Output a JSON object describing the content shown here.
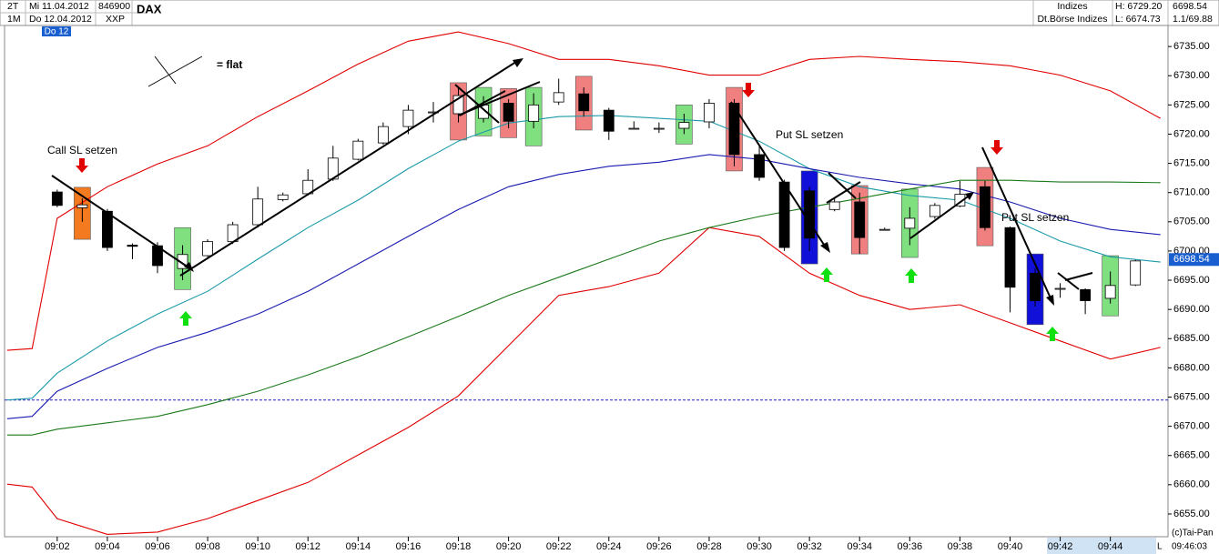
{
  "header": {
    "period1": "2T",
    "date1": "Mi 11.04.2012",
    "code": "846900",
    "symbol": "DAX",
    "period2": "1M",
    "date2": "Do 12.04.2012",
    "exchange_code": "XXP",
    "day_badge": "Do 12",
    "category": "Indizes",
    "exchange": "Dt.Börse Indizes",
    "high": "H: 6729.20",
    "low": "L: 6674.73",
    "last": "6698.54",
    "volume": "1.1/69.88"
  },
  "chart_data": {
    "type": "candlestick",
    "x": [
      2,
      3,
      4,
      5,
      6,
      7,
      8,
      9,
      10,
      11,
      12,
      13,
      14,
      15,
      16,
      17,
      18,
      19,
      20,
      21,
      22,
      23,
      24,
      25,
      26,
      27,
      28,
      29,
      30,
      31,
      32,
      33,
      34,
      35,
      36,
      37,
      38,
      39,
      40,
      41,
      42,
      43,
      44,
      45
    ],
    "open": [
      6710.1,
      6707.4,
      6706.8,
      6701.0,
      6700.9,
      6697.0,
      6699.2,
      6701.6,
      6704.5,
      6708.8,
      6709.8,
      6712.3,
      6715.7,
      6718.5,
      6721.3,
      6723.8,
      6723.5,
      6722.7,
      6725.3,
      6722.2,
      6725.5,
      6726.9,
      6724.1,
      6721.0,
      6721.0,
      6721.0,
      6722.1,
      6725.3,
      6716.5,
      6711.8,
      6710.3,
      6707.1,
      6708.4,
      6703.7,
      6703.9,
      6705.9,
      6707.7,
      6711.0,
      6704.0,
      6696.2,
      6693.6,
      6693.4,
      6691.9,
      6694.2
    ],
    "high": [
      6710.5,
      6709.0,
      6707.2,
      6701.3,
      6701.5,
      6701.0,
      6702.0,
      6705.0,
      6711.0,
      6710.0,
      6714.0,
      6718.0,
      6719.2,
      6722.0,
      6725.0,
      6725.5,
      6728.0,
      6726.5,
      6726.0,
      6727.0,
      6729.5,
      6728.0,
      6724.5,
      6722.2,
      6722.0,
      6723.5,
      6726.0,
      6726.0,
      6718.0,
      6712.2,
      6711.0,
      6709.0,
      6710.0,
      6704.0,
      6707.5,
      6708.2,
      6712.0,
      6712.0,
      6704.2,
      6697.0,
      6694.5,
      6693.6,
      6696.5,
      6698.5
    ],
    "low": [
      6707.5,
      6705.0,
      6700.0,
      6698.6,
      6696.2,
      6695.0,
      6699.0,
      6701.2,
      6704.0,
      6708.5,
      6709.5,
      6712.0,
      6715.5,
      6718.2,
      6720.0,
      6722.0,
      6722.0,
      6722.0,
      6721.0,
      6721.0,
      6725.0,
      6723.0,
      6719.0,
      6721.0,
      6720.2,
      6720.0,
      6721.0,
      6714.5,
      6712.0,
      6700.0,
      6700.0,
      6706.8,
      6699.5,
      6703.5,
      6701.0,
      6705.5,
      6707.5,
      6703.5,
      6689.5,
      6690.5,
      6692.0,
      6689.2,
      6691.0,
      6694.0
    ],
    "close": [
      6707.8,
      6707.9,
      6700.6,
      6700.8,
      6697.5,
      6699.4,
      6701.6,
      6704.5,
      6708.9,
      6709.6,
      6712.1,
      6715.9,
      6718.8,
      6721.3,
      6724.1,
      6723.8,
      6726.6,
      6725.0,
      6722.2,
      6725.0,
      6727.1,
      6724.0,
      6720.5,
      6721.0,
      6721.0,
      6722.0,
      6725.3,
      6716.5,
      6712.6,
      6700.6,
      6702.2,
      6708.4,
      6702.3,
      6703.7,
      6705.6,
      6707.8,
      6709.7,
      6704.0,
      6693.8,
      6691.5,
      6693.6,
      6691.5,
      6694.1,
      6698.3
    ],
    "up_color": "#ffffff",
    "down_color": "#000000",
    "highlights": {
      "x": [
        3,
        7,
        18,
        19,
        20,
        21,
        23,
        27,
        29,
        32,
        34,
        36,
        39,
        41,
        44
      ],
      "top": [
        6710.9,
        6704.0,
        6728.8,
        6728.0,
        6727.8,
        6728.0,
        6729.9,
        6725.0,
        6728.0,
        6713.7,
        6711.2,
        6710.6,
        6714.3,
        6699.5,
        6699.2
      ],
      "bottom": [
        6702.0,
        6693.4,
        6719.0,
        6719.7,
        6719.4,
        6718.0,
        6720.7,
        6718.3,
        6713.7,
        6697.8,
        6699.5,
        6698.9,
        6700.9,
        6687.4,
        6688.9
      ],
      "colors": [
        "#f47a20",
        "#80e080",
        "#f08080",
        "#80e080",
        "#f08080",
        "#80e080",
        "#f08080",
        "#80e080",
        "#f08080",
        "#1010d8",
        "#f08080",
        "#80e080",
        "#f08080",
        "#1010d8",
        "#80e080"
      ]
    },
    "indicator_x": [
      0,
      1,
      2,
      4,
      6,
      8,
      10,
      12,
      14,
      16,
      18,
      20,
      22,
      24,
      26,
      28,
      30,
      32,
      34,
      36,
      38,
      40,
      42,
      44,
      46
    ],
    "indicators": [
      {
        "color": "#e00000",
        "values": [
          6683.0,
          6683.3,
          6705.6,
          6711.0,
          6714.9,
          6718.0,
          6723.0,
          6727.4,
          6732.0,
          6735.9,
          6737.5,
          6735.5,
          6732.8,
          6732.8,
          6731.7,
          6730.1,
          6730.1,
          6732.8,
          6733.3,
          6732.8,
          6732.4,
          6731.7,
          6730.1,
          6727.4,
          6722.7
        ]
      },
      {
        "color": "#e00000",
        "values": [
          6660.1,
          6659.6,
          6654.2,
          6651.5,
          6651.9,
          6654.2,
          6657.3,
          6660.4,
          6665.1,
          6669.8,
          6675.2,
          6683.8,
          6692.4,
          6693.9,
          6696.2,
          6704.0,
          6702.5,
          6696.2,
          6692.4,
          6690.0,
          6690.8,
          6687.7,
          6684.6,
          6681.5,
          6683.5
        ]
      },
      {
        "color": "#1a9aa8",
        "values": [
          6674.5,
          6674.8,
          6679.1,
          6684.6,
          6689.2,
          6693.1,
          6698.6,
          6704.0,
          6708.7,
          6714.1,
          6718.8,
          6721.9,
          6723.0,
          6723.2,
          6722.7,
          6722.2,
          6718.8,
          6714.1,
          6711.0,
          6709.5,
          6708.7,
          6705.6,
          6701.7,
          6699.0,
          6698.1
        ]
      },
      {
        "color": "#1a1ab0",
        "values": [
          6671.3,
          6671.7,
          6676.0,
          6679.9,
          6683.5,
          6686.1,
          6689.2,
          6693.1,
          6697.8,
          6702.5,
          6707.1,
          6711.0,
          6713.1,
          6714.5,
          6715.2,
          6716.5,
          6715.7,
          6714.1,
          6712.6,
          6711.5,
          6710.6,
          6708.4,
          6705.6,
          6703.7,
          6702.8
        ]
      },
      {
        "color": "#1a7a1a",
        "values": [
          6668.5,
          6668.5,
          6669.5,
          6670.6,
          6671.7,
          6673.7,
          6676.0,
          6678.8,
          6681.9,
          6685.3,
          6688.8,
          6692.4,
          6695.5,
          6698.6,
          6701.7,
          6704.0,
          6705.9,
          6707.5,
          6709.0,
          6710.6,
          6712.1,
          6712.1,
          6711.8,
          6711.8,
          6711.7
        ]
      }
    ],
    "reference_line": 6674.5,
    "last_price": 6698.54,
    "xlim": [
      -0.1,
      46.3
    ],
    "ylim": [
      6651.1,
      6738.6
    ],
    "xticks": [
      {
        "value": 2,
        "label": "09:02"
      },
      {
        "value": 4,
        "label": "09:04"
      },
      {
        "value": 6,
        "label": "09:06"
      },
      {
        "value": 8,
        "label": "09:08"
      },
      {
        "value": 10,
        "label": "09:10"
      },
      {
        "value": 12,
        "label": "09:12"
      },
      {
        "value": 14,
        "label": "09:14"
      },
      {
        "value": 16,
        "label": "09:16"
      },
      {
        "value": 18,
        "label": "09:18"
      },
      {
        "value": 20,
        "label": "09:20"
      },
      {
        "value": 22,
        "label": "09:22"
      },
      {
        "value": 24,
        "label": "09:24"
      },
      {
        "value": 26,
        "label": "09:26"
      },
      {
        "value": 28,
        "label": "09:28"
      },
      {
        "value": 30,
        "label": "09:30"
      },
      {
        "value": 32,
        "label": "09:32"
      },
      {
        "value": 34,
        "label": "09:34"
      },
      {
        "value": 36,
        "label": "09:36"
      },
      {
        "value": 38,
        "label": "09:38"
      },
      {
        "value": 40,
        "label": "09:40"
      },
      {
        "value": 42,
        "label": "09:42"
      },
      {
        "value": 44,
        "label": "09:44"
      }
    ],
    "yticks": [
      {
        "value": 6655,
        "label": "6655.00"
      },
      {
        "value": 6660,
        "label": "6660.00"
      },
      {
        "value": 6665,
        "label": "6665.00"
      },
      {
        "value": 6670,
        "label": "6670.00"
      },
      {
        "value": 6675,
        "label": "6675.00"
      },
      {
        "value": 6680,
        "label": "6680.00"
      },
      {
        "value": 6685,
        "label": "6685.00"
      },
      {
        "value": 6690,
        "label": "6690.00"
      },
      {
        "value": 6695,
        "label": "6695.00"
      },
      {
        "value": 6700,
        "label": "6700.00"
      },
      {
        "value": 6705,
        "label": "6705.00"
      },
      {
        "value": 6710,
        "label": "6710.00"
      },
      {
        "value": 6715,
        "label": "6715.00"
      },
      {
        "value": 6720,
        "label": "6720.00"
      },
      {
        "value": 6725,
        "label": "6725.00"
      },
      {
        "value": 6730,
        "label": "6730.00"
      },
      {
        "value": 6735,
        "label": "6735.00"
      }
    ],
    "annotations": [
      "Call SL setzen",
      "Put SL setzen",
      "Put SL setzen",
      "= flat"
    ]
  },
  "footer": {
    "copyright": "(c)Tai-Pan",
    "time": "09:46:03",
    "mode": "L"
  }
}
